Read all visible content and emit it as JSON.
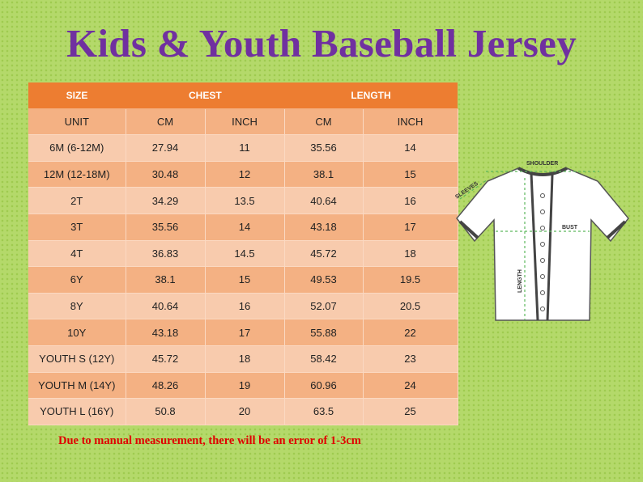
{
  "title": "Kids & Youth Baseball Jersey",
  "table": {
    "header": {
      "size": "SIZE",
      "chest": "CHEST",
      "length": "LENGTH"
    },
    "units": [
      "UNIT",
      "CM",
      "INCH",
      "CM",
      "INCH"
    ],
    "rows": [
      [
        "6M (6-12M)",
        "27.94",
        "11",
        "35.56",
        "14"
      ],
      [
        "12M (12-18M)",
        "30.48",
        "12",
        "38.1",
        "15"
      ],
      [
        "2T",
        "34.29",
        "13.5",
        "40.64",
        "16"
      ],
      [
        "3T",
        "35.56",
        "14",
        "43.18",
        "17"
      ],
      [
        "4T",
        "36.83",
        "14.5",
        "45.72",
        "18"
      ],
      [
        "6Y",
        "38.1",
        "15",
        "49.53",
        "19.5"
      ],
      [
        "8Y",
        "40.64",
        "16",
        "52.07",
        "20.5"
      ],
      [
        "10Y",
        "43.18",
        "17",
        "55.88",
        "22"
      ],
      [
        "YOUTH S (12Y)",
        "45.72",
        "18",
        "58.42",
        "23"
      ],
      [
        "YOUTH M (14Y)",
        "48.26",
        "19",
        "60.96",
        "24"
      ],
      [
        "YOUTH L (16Y)",
        "50.8",
        "20",
        "63.5",
        "25"
      ]
    ]
  },
  "diagram": {
    "shoulder": "SHOULDER",
    "sleeves": "SLEEVES",
    "bust": "BUST",
    "length": "LENGTH"
  },
  "note": "Due to manual measurement, there will be an error of 1-3cm",
  "colors": {
    "background": "#b4d96a",
    "title": "#7030a0",
    "header": "#ed7d31",
    "row_dark": "#f4b183",
    "row_light": "#f8cbad",
    "note": "#e00000"
  }
}
